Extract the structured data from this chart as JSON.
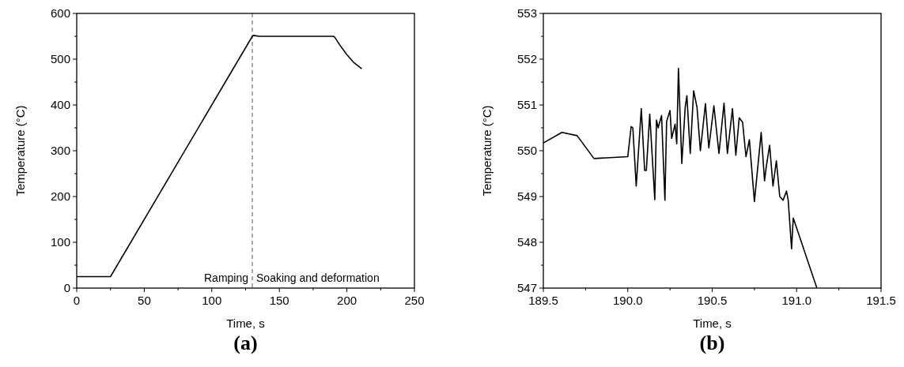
{
  "chart_data": [
    {
      "type": "line",
      "title": "(a)",
      "xlabel": "Time, s",
      "ylabel": "Temperature (°C)",
      "xlim": [
        0,
        250
      ],
      "ylim": [
        0,
        600
      ],
      "xticks": [
        0,
        {
          "value": 25,
          "label": null
        },
        50,
        {
          "value": 75,
          "label": null
        },
        100,
        {
          "value": 125,
          "label": null
        },
        150,
        {
          "value": 175,
          "label": null
        },
        200,
        {
          "value": 225,
          "label": null
        },
        250
      ],
      "yticks": [
        0,
        {
          "value": 50,
          "label": null
        },
        100,
        {
          "value": 150,
          "label": null
        },
        200,
        {
          "value": 250,
          "label": null
        },
        300,
        {
          "value": 350,
          "label": null
        },
        400,
        {
          "value": 450,
          "label": null
        },
        500,
        {
          "value": 550,
          "label": null
        },
        600
      ],
      "grid": false,
      "marker": "none",
      "line_style": "solid",
      "ref_lines": [
        {
          "axis": "x",
          "value": 130,
          "line_style": "dashed",
          "color": "#555555"
        }
      ],
      "annotations": [
        "Ramping",
        "Soaking and deformation"
      ],
      "series": [
        {
          "color": "#000000",
          "x": [
            0,
            25,
            130,
            131,
            135,
            190,
            191,
            195,
            200,
            205,
            211
          ],
          "values": [
            25,
            25,
            550,
            552,
            550,
            550,
            548,
            530,
            510,
            493,
            479
          ]
        }
      ]
    },
    {
      "type": "line",
      "title": "(b)",
      "xlabel": "Time, s",
      "ylabel": "Temperature (°C)",
      "xlim": [
        189.5,
        191.5
      ],
      "ylim": [
        547,
        553
      ],
      "xticks": [
        {
          "value": 189.5,
          "label": "189.5"
        },
        {
          "value": 189.75,
          "label": null
        },
        {
          "value": 190,
          "label": "190.0"
        },
        {
          "value": 190.25,
          "label": null
        },
        {
          "value": 190.5,
          "label": "190.5"
        },
        {
          "value": 190.75,
          "label": null
        },
        {
          "value": 191,
          "label": "191.0"
        },
        {
          "value": 191.25,
          "label": null
        },
        {
          "value": 191.5,
          "label": "191.5"
        }
      ],
      "yticks": [
        547,
        {
          "value": 547.5,
          "label": null
        },
        548,
        {
          "value": 548.5,
          "label": null
        },
        549,
        {
          "value": 549.5,
          "label": null
        },
        550,
        {
          "value": 550.5,
          "label": null
        },
        551,
        {
          "value": 551.5,
          "label": null
        },
        552,
        {
          "value": 552.5,
          "label": null
        },
        553
      ],
      "grid": false,
      "marker": "none",
      "line_style": "solid",
      "series": [
        {
          "color": "#000000",
          "x": [
            189.5,
            189.61,
            189.7,
            189.8,
            190.0,
            190.02,
            190.03,
            190.05,
            190.08,
            190.1,
            190.11,
            190.13,
            190.16,
            190.17,
            190.18,
            190.2,
            190.22,
            190.23,
            190.25,
            190.26,
            190.28,
            190.29,
            190.3,
            190.32,
            190.34,
            190.35,
            190.37,
            190.39,
            190.41,
            190.43,
            190.46,
            190.48,
            190.51,
            190.54,
            190.57,
            190.59,
            190.62,
            190.64,
            190.66,
            190.68,
            190.7,
            190.72,
            190.75,
            190.79,
            190.81,
            190.82,
            190.84,
            190.86,
            190.88,
            190.9,
            190.92,
            190.94,
            190.95,
            190.97,
            190.98,
            191.12
          ],
          "values": [
            550.17,
            550.4,
            550.33,
            549.83,
            549.87,
            550.53,
            550.5,
            549.23,
            550.92,
            549.57,
            549.57,
            550.8,
            548.93,
            550.67,
            550.5,
            550.77,
            548.92,
            550.64,
            550.88,
            550.27,
            550.58,
            550.15,
            551.8,
            549.72,
            550.95,
            551.2,
            549.94,
            551.31,
            550.95,
            550.0,
            551.03,
            550.06,
            550.98,
            549.94,
            551.04,
            549.94,
            550.92,
            549.9,
            550.72,
            550.62,
            549.87,
            550.24,
            548.89,
            550.4,
            549.34,
            549.65,
            550.12,
            549.23,
            549.78,
            549.0,
            548.92,
            549.12,
            548.92,
            547.86,
            548.53,
            547.0
          ]
        }
      ]
    }
  ]
}
